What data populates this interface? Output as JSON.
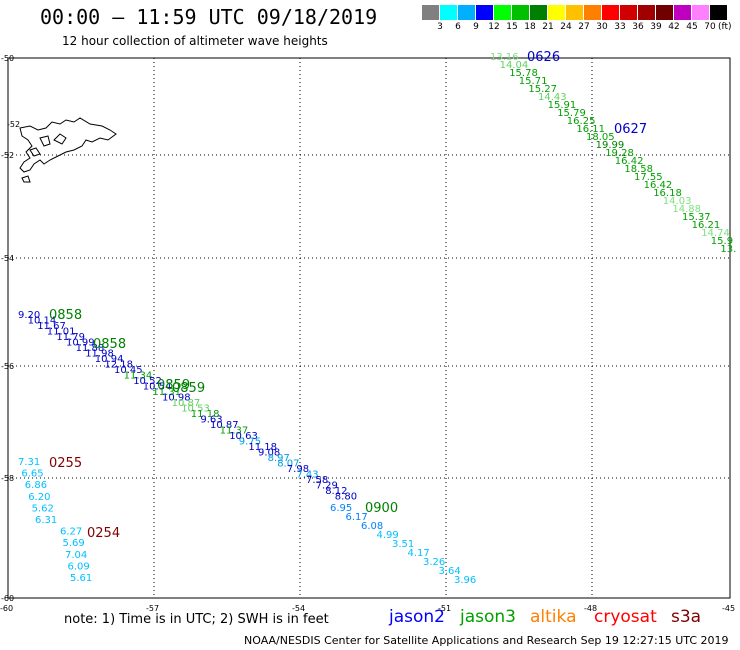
{
  "header": {
    "title": "00:00 – 11:59 UTC 09/18/2019",
    "subtitle": "12 hour collection of altimeter wave heights"
  },
  "legend": {
    "colors": [
      "#808080",
      "#00ffff",
      "#00b0ff",
      "#0000ff",
      "#00ff00",
      "#00c000",
      "#008000",
      "#ffff00",
      "#ffc000",
      "#ff8000",
      "#ff0000",
      "#d00000",
      "#a00000",
      "#700000",
      "#c000c0",
      "#ff80ff",
      "#000000"
    ],
    "ticks": [
      "3",
      "6",
      "9",
      "12",
      "15",
      "18",
      "21",
      "24",
      "27",
      "30",
      "33",
      "36",
      "39",
      "42",
      "45",
      "70"
    ],
    "unit": "(ft)"
  },
  "axes": {
    "x_labels": [
      "-60",
      "-57",
      "-54",
      "-51",
      "-48",
      "-45"
    ],
    "y_labels": [
      "-50",
      "-52",
      "-54",
      "-56",
      "-58",
      "-60"
    ],
    "y_label_mid": "-52"
  },
  "passes": [
    {
      "label": "0626",
      "color": "#0000c8"
    },
    {
      "label": "0627",
      "color": "#0000c8"
    },
    {
      "label": "0858",
      "color": "#008000"
    },
    {
      "label": "0858",
      "color": "#008000"
    },
    {
      "label": "0859",
      "color": "#008000"
    },
    {
      "label": "0859",
      "color": "#008000"
    },
    {
      "label": "0900",
      "color": "#008000"
    },
    {
      "label": "0255",
      "color": "#800000"
    },
    {
      "label": "0254",
      "color": "#800000"
    }
  ],
  "tracks": [
    {
      "name": "ne-green",
      "values": [
        "13.16",
        "14.04",
        "15.78",
        "15.71",
        "15.27",
        "14.43",
        "15.91",
        "15.79",
        "16.25",
        "16.11",
        "18.05",
        "19.99",
        "19.28",
        "16.42",
        "18.58",
        "17.55",
        "16.42",
        "16.18",
        "14.03",
        "14.88",
        "15.37",
        "16.21",
        "14.74",
        "15.9",
        "13."
      ]
    },
    {
      "name": "sw-blue-green",
      "values": [
        "9.20",
        "10.14",
        "11.67",
        "11.01",
        "11.79",
        "10.99",
        "11.88",
        "11.98",
        "10.94",
        "12.18",
        "10.45",
        "11.34",
        "10.52",
        "10.54",
        "11.31",
        "10.98",
        "10.87",
        "10.53",
        "11.18",
        "9.63",
        "10.87",
        "11.37",
        "10.63",
        "9.75",
        "11.18",
        "9.08",
        "8.97",
        "8.07",
        "7.98",
        "7.43",
        "7.58",
        "7.29",
        "8.12",
        "8.80"
      ]
    },
    {
      "name": "cyan-east",
      "values": [
        "6.95",
        "6.17",
        "6.08",
        "4.99",
        "3.51",
        "4.17",
        "3.26",
        "3.64",
        "3.96"
      ]
    },
    {
      "name": "cyan-west",
      "values": [
        "7.31",
        "6.65",
        "6.86",
        "6.20",
        "5.62",
        "6.31",
        "6.27",
        "5.69",
        "7.04",
        "6.09",
        "5.61"
      ]
    }
  ],
  "footer": {
    "note": "note: 1) Time is in UTC; 2) SWH is in feet",
    "satellites": [
      {
        "name": "jason2",
        "color": "#0000ff"
      },
      {
        "name": "jason3",
        "color": "#00a000"
      },
      {
        "name": "altika",
        "color": "#ff8000"
      },
      {
        "name": "cryosat",
        "color": "#ff0000"
      },
      {
        "name": "s3a",
        "color": "#800000"
      }
    ],
    "credit": "NOAA/NESDIS Center for Satellite Applications and Research    Sep 19 12:27:15 UTC 2019"
  }
}
